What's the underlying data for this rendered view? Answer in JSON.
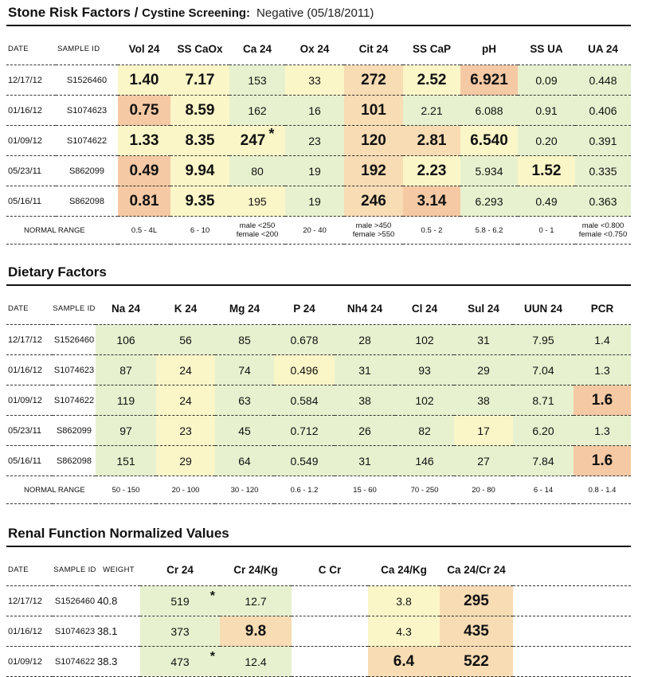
{
  "stone": {
    "title": "Stone Risk Factors",
    "slash": " / ",
    "subtitle": "Cystine Screening:",
    "screening": "Negative (05/18/2011)",
    "headers": [
      "DATE",
      "SAMPLE ID",
      "Vol 24",
      "SS CaOx",
      "Ca 24",
      "Ox 24",
      "Cit 24",
      "SS CaP",
      "pH",
      "SS UA",
      "UA 24"
    ],
    "rows": [
      {
        "date": "12/17/12",
        "sid": "S1526460",
        "v": [
          "1.40",
          "7.17",
          "153",
          "33",
          "272",
          "2.52",
          "6.921",
          "0.09",
          "0.448"
        ]
      },
      {
        "date": "01/16/12",
        "sid": "S1074623",
        "v": [
          "0.75",
          "8.59",
          "162",
          "16",
          "101",
          "2.21",
          "6.088",
          "0.91",
          "0.406"
        ]
      },
      {
        "date": "01/09/12",
        "sid": "S1074622",
        "v": [
          "1.33",
          "8.35",
          "247",
          "23",
          "120",
          "2.81",
          "6.540",
          "0.20",
          "0.391"
        ]
      },
      {
        "date": "05/23/11",
        "sid": "S862099",
        "v": [
          "0.49",
          "9.94",
          "80",
          "19",
          "192",
          "2.23",
          "5.934",
          "1.52",
          "0.335"
        ]
      },
      {
        "date": "05/16/11",
        "sid": "S862098",
        "v": [
          "0.81",
          "9.35",
          "195",
          "19",
          "246",
          "3.14",
          "6.293",
          "0.49",
          "0.363"
        ]
      }
    ],
    "star": "*",
    "normal_label": "NORMAL RANGE",
    "normal": {
      "vol": "0.5 - 4L",
      "sscaox": "6 - 10",
      "ca_m": "male <250",
      "ca_f": "female <200",
      "ox": "20 - 40",
      "cit_m": "male >450",
      "cit_f": "female >550",
      "sscap": "0.5 - 2",
      "ph": "5.8 - 6.2",
      "ssua": "0 - 1",
      "ua_m": "male <0.800",
      "ua_f": "female <0.750"
    }
  },
  "diet": {
    "title": "Dietary Factors",
    "headers": [
      "DATE",
      "SAMPLE ID",
      "Na 24",
      "K 24",
      "Mg 24",
      "P 24",
      "Nh4 24",
      "Cl 24",
      "Sul 24",
      "UUN 24",
      "PCR"
    ],
    "rows": [
      {
        "date": "12/17/12",
        "sid": "S1526460",
        "v": [
          "106",
          "56",
          "85",
          "0.678",
          "28",
          "102",
          "31",
          "7.95",
          "1.4"
        ]
      },
      {
        "date": "01/16/12",
        "sid": "S1074623",
        "v": [
          "87",
          "24",
          "74",
          "0.496",
          "31",
          "93",
          "29",
          "7.04",
          "1.3"
        ]
      },
      {
        "date": "01/09/12",
        "sid": "S1074622",
        "v": [
          "119",
          "24",
          "63",
          "0.584",
          "38",
          "102",
          "38",
          "8.71",
          "1.6"
        ]
      },
      {
        "date": "05/23/11",
        "sid": "S862099",
        "v": [
          "97",
          "23",
          "45",
          "0.712",
          "26",
          "82",
          "17",
          "6.20",
          "1.3"
        ]
      },
      {
        "date": "05/16/11",
        "sid": "S862098",
        "v": [
          "151",
          "29",
          "64",
          "0.549",
          "31",
          "146",
          "27",
          "7.84",
          "1.6"
        ]
      }
    ],
    "normal_label": "NORMAL RANGE",
    "normal": [
      "50 - 150",
      "20 - 100",
      "30 - 120",
      "0.6 - 1.2",
      "15 - 60",
      "70 - 250",
      "20 - 80",
      "6 - 14",
      "0.8 - 1.4"
    ]
  },
  "renal": {
    "title": "Renal Function Normalized Values",
    "headers": [
      "DATE",
      "SAMPLE ID",
      "WEIGHT",
      "Cr 24",
      "Cr 24/Kg",
      "C Cr",
      "Ca 24/Kg",
      "Ca 24/Cr 24"
    ],
    "rows": [
      {
        "date": "12/17/12",
        "sid": "S1526460",
        "weight": "40.8",
        "cr": "519",
        "crkg": "12.7",
        "ccr": "",
        "cakg": "3.8",
        "cacr": "295"
      },
      {
        "date": "01/16/12",
        "sid": "S1074623",
        "weight": "38.1",
        "cr": "373",
        "crkg": "9.8",
        "ccr": "",
        "cakg": "4.3",
        "cacr": "435"
      },
      {
        "date": "01/09/12",
        "sid": "S1074622",
        "weight": "38.3",
        "cr": "473",
        "crkg": "12.4",
        "ccr": "",
        "cakg": "6.4",
        "cacr": "522"
      }
    ],
    "star": "*"
  },
  "colors": {
    "green": "#e7f1cf",
    "yellow": "#fbf6c8",
    "orange": "#f7dcb4",
    "peach": "#f5c9a4"
  }
}
